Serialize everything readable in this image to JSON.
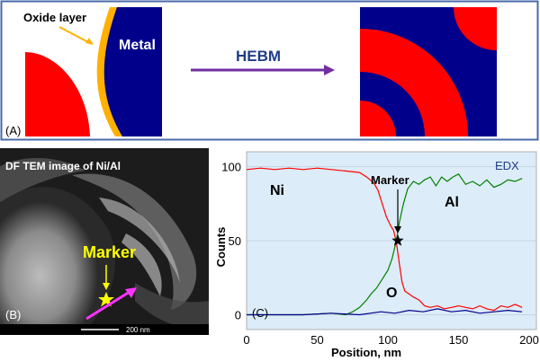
{
  "panelA": {
    "oxide_label": "Oxide layer",
    "metal_label": "Metal",
    "process_label": "HEBM",
    "panel_label": "(A)",
    "colors": {
      "red": "#ff0000",
      "blue": "#00008b",
      "oxide": "#ffb000",
      "arrow": "#7030a0",
      "border": "#4a6aa8"
    }
  },
  "panelB": {
    "title": "DF TEM image of Ni/Al",
    "marker_label": "Marker",
    "panel_label": "(B)",
    "scale_label": "200 nm"
  },
  "panelC": {
    "panel_label": "(C)",
    "edx_label": "EDX",
    "marker_label": "Marker"
  },
  "chart_data": {
    "type": "line",
    "xlabel": "Position, nm",
    "ylabel": "Counts",
    "xlim": [
      0,
      200
    ],
    "ylim": [
      -10,
      110
    ],
    "x_ticks": [
      0,
      50,
      100,
      150,
      200
    ],
    "y_ticks": [
      0,
      50,
      100
    ],
    "series": [
      {
        "name": "Ni",
        "color": "#ff0000",
        "x": [
          0,
          10,
          20,
          30,
          40,
          50,
          60,
          70,
          80,
          85,
          90,
          93,
          96,
          99,
          102,
          104,
          106,
          108,
          110,
          112,
          115,
          118,
          122,
          126,
          130,
          135,
          140,
          145,
          150,
          155,
          160,
          165,
          170,
          175,
          180,
          185,
          190,
          195
        ],
        "y": [
          98,
          99,
          98,
          99,
          98,
          99,
          98,
          97,
          96,
          93,
          89,
          84,
          75,
          66,
          60,
          57,
          49,
          35,
          22,
          16,
          14,
          12,
          10,
          6,
          5,
          6,
          4,
          5,
          6,
          5,
          4,
          6,
          4,
          3,
          6,
          5,
          7,
          5
        ]
      },
      {
        "name": "Al",
        "color": "#008000",
        "x": [
          0,
          20,
          40,
          60,
          70,
          75,
          80,
          85,
          88,
          92,
          96,
          100,
          103,
          106,
          108,
          111,
          114,
          118,
          122,
          126,
          130,
          134,
          138,
          142,
          146,
          150,
          155,
          160,
          165,
          170,
          175,
          180,
          185,
          190,
          195
        ],
        "y": [
          0,
          0,
          0,
          1,
          0,
          2,
          5,
          10,
          14,
          18,
          24,
          30,
          38,
          50,
          62,
          75,
          85,
          90,
          88,
          91,
          93,
          87,
          93,
          90,
          93,
          95,
          88,
          90,
          87,
          91,
          86,
          88,
          91,
          90,
          92
        ]
      },
      {
        "name": "O",
        "color": "#00008b",
        "x": [
          0,
          20,
          40,
          60,
          80,
          95,
          105,
          115,
          125,
          135,
          145,
          155,
          165,
          175,
          185,
          195
        ],
        "y": [
          0,
          0,
          0,
          1,
          0,
          2,
          1,
          3,
          2,
          4,
          2,
          3,
          1,
          2,
          3,
          2
        ]
      }
    ],
    "marker_point": {
      "x": 107,
      "y": 50
    }
  }
}
